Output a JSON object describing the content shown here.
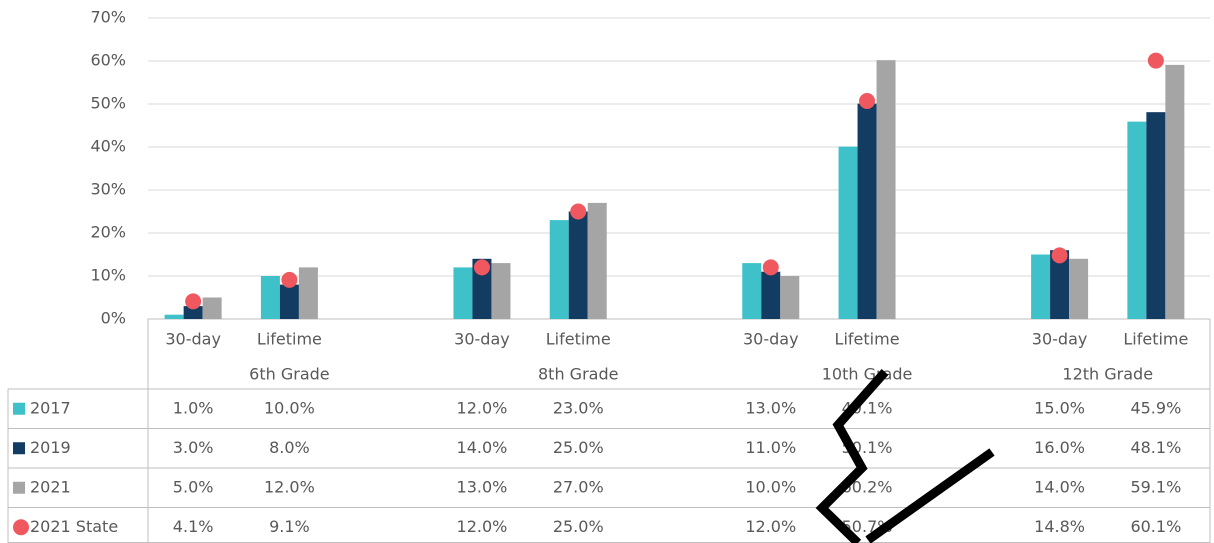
{
  "chart_data": {
    "type": "bar",
    "categories": [
      "30-day",
      "Lifetime",
      null,
      "30-day",
      "Lifetime",
      null,
      "30-day",
      "Lifetime",
      null,
      "30-day",
      "Lifetime"
    ],
    "group_labels": [
      "6th Grade",
      "8th Grade",
      "10th Grade",
      "12th Grade"
    ],
    "series": [
      {
        "name": "2017",
        "color": "#3fc1c9",
        "style": "bar",
        "values": [
          1,
          10,
          null,
          12,
          23,
          null,
          13,
          40.1,
          null,
          15,
          45.9
        ],
        "value_labels": [
          "1.0%",
          "10.0%",
          null,
          "12.0%",
          "23.0%",
          null,
          "13.0%",
          "40.1%",
          null,
          "15.0%",
          "45.9%"
        ]
      },
      {
        "name": "2019",
        "color": "#133c63",
        "style": "bar",
        "values": [
          3,
          8,
          null,
          14,
          25,
          null,
          11,
          50.1,
          null,
          16,
          48.1
        ],
        "value_labels": [
          "3.0%",
          "8.0%",
          null,
          "14.0%",
          "25.0%",
          null,
          "11.0%",
          "50.1%",
          null,
          "16.0%",
          "48.1%"
        ]
      },
      {
        "name": "2021",
        "color": "#a5a5a5",
        "style": "bar",
        "values": [
          5,
          12,
          null,
          13,
          27,
          null,
          10,
          60.2,
          null,
          14,
          59.1
        ],
        "value_labels": [
          "5.0%",
          "12.0%",
          null,
          "13.0%",
          "27.0%",
          null,
          "10.0%",
          "60.2%",
          null,
          "14.0%",
          "59.1%"
        ]
      },
      {
        "name": "2021 State",
        "color": "#f0585f",
        "style": "dot",
        "values": [
          4.1,
          9.1,
          null,
          12,
          25,
          null,
          12,
          50.7,
          null,
          14.8,
          60.1
        ],
        "value_labels": [
          "4.1%",
          "9.1%",
          null,
          "12.0%",
          "25.0%",
          null,
          "12.0%",
          "50.7%",
          null,
          "14.8%",
          "60.1%"
        ]
      }
    ],
    "ylim": [
      0,
      70
    ],
    "yticks": [
      {
        "value": 0,
        "label": "0%"
      },
      {
        "value": 10,
        "label": "10%"
      },
      {
        "value": 20,
        "label": "20%"
      },
      {
        "value": 30,
        "label": "30%"
      },
      {
        "value": 40,
        "label": "40%"
      },
      {
        "value": 50,
        "label": "50%"
      },
      {
        "value": 60,
        "label": "60%"
      },
      {
        "value": 70,
        "label": "70%"
      }
    ],
    "grid": true
  }
}
